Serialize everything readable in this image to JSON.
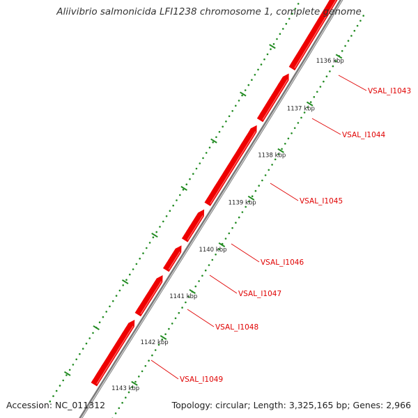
{
  "title": "Aliivibrio salmonicida LFI1238 chromosome 1, complete genome",
  "accession": "Accession: NC_011312",
  "summary": "Topology: circular; Length: 3,325,165 bp; Genes: 2,966",
  "ruler": {
    "ticks": [
      {
        "label": "1136 kbp"
      },
      {
        "label": "1137 kbp"
      },
      {
        "label": "1138 kbp"
      },
      {
        "label": "1139 kbp"
      },
      {
        "label": "1140 kbp"
      },
      {
        "label": "1141 kbp"
      },
      {
        "label": "1142 kbp"
      },
      {
        "label": "1143 kbp"
      }
    ]
  },
  "genes": [
    {
      "label": "VSAL_I1043"
    },
    {
      "label": "VSAL_I1044"
    },
    {
      "label": "VSAL_I1045"
    },
    {
      "label": "VSAL_I1046"
    },
    {
      "label": "VSAL_I1047"
    },
    {
      "label": "VSAL_I1048"
    },
    {
      "label": "VSAL_I1049"
    }
  ],
  "colors": {
    "gene": "#ee0000",
    "gene_highlight": "#ff8080",
    "backbone": "#7a7a7a",
    "backbone_highlight": "#d9d9d9",
    "tick": "#228b22",
    "label_line": "#e00000"
  }
}
